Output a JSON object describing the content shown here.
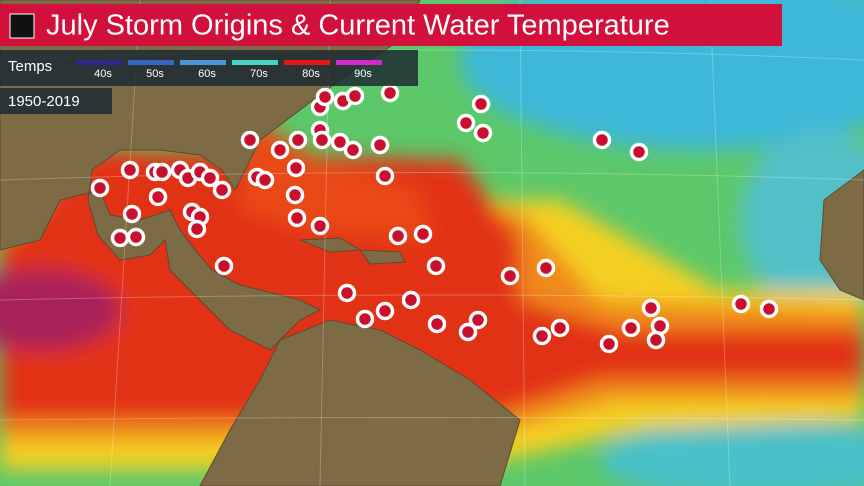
{
  "header": {
    "title": "July Storm Origins & Current Water Temperature"
  },
  "legend": {
    "title": "Temps",
    "items": [
      {
        "label": "40s",
        "color": "#2b2a8c"
      },
      {
        "label": "50s",
        "color": "#3a64c4"
      },
      {
        "label": "60s",
        "color": "#4f94d4"
      },
      {
        "label": "70s",
        "color": "#48d4c0"
      },
      {
        "label": "80s",
        "color": "#e3161a"
      },
      {
        "label": "90s",
        "color": "#d22ac8"
      }
    ]
  },
  "period": "1950-2019"
}
